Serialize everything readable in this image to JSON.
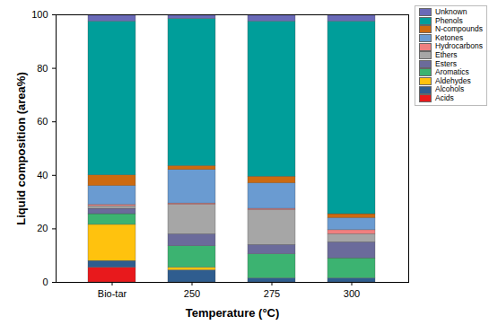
{
  "chart_data": {
    "type": "bar",
    "stacked": true,
    "x_label": "Temperature (°C)",
    "y_label": "Liquid composition (area%)",
    "categories": [
      "Bio-tar",
      "250",
      "275",
      "300"
    ],
    "ylim": [
      0,
      100
    ],
    "yticks": [
      0,
      20,
      40,
      60,
      80,
      100
    ],
    "legend": "right",
    "series": [
      {
        "name": "Acids",
        "color": "#e8191c",
        "values": [
          5.5,
          0,
          0,
          0
        ]
      },
      {
        "name": "Alcohols",
        "color": "#2f5d8f",
        "values": [
          2.5,
          4.5,
          1.5,
          1.5
        ]
      },
      {
        "name": "Aldehydes",
        "color": "#ffc20e",
        "values": [
          13.5,
          1,
          0,
          0
        ]
      },
      {
        "name": "Aromatics",
        "color": "#3cb371",
        "values": [
          4,
          8,
          9,
          7.5
        ]
      },
      {
        "name": "Esters",
        "color": "#6b6b9b",
        "values": [
          2,
          4.5,
          3.5,
          6
        ]
      },
      {
        "name": "Ethers",
        "color": "#a6a6a6",
        "values": [
          1,
          11,
          13,
          3
        ]
      },
      {
        "name": "Hydrocarbons",
        "color": "#f08080",
        "values": [
          0.5,
          0.5,
          0.5,
          1.5
        ]
      },
      {
        "name": "Ketones",
        "color": "#6a9bd1",
        "values": [
          7,
          12.5,
          9.5,
          4.5
        ]
      },
      {
        "name": "N-compounds",
        "color": "#cc6a10",
        "values": [
          4,
          1.5,
          2.5,
          1.5
        ]
      },
      {
        "name": "Phenols",
        "color": "#009e9a",
        "values": [
          57.5,
          55,
          58,
          72
        ]
      },
      {
        "name": "Unknown",
        "color": "#6a6ab8",
        "values": [
          2.5,
          1.5,
          2.5,
          2.5
        ]
      }
    ]
  }
}
